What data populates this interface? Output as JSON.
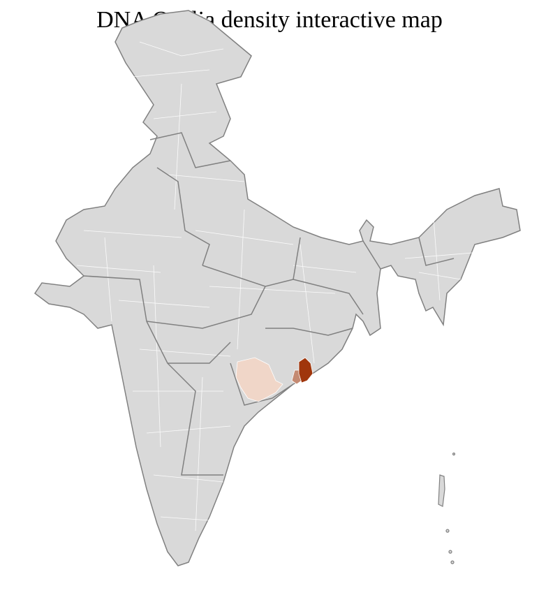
{
  "title": "DNA O Alia density interactive map",
  "colors": {
    "land": "#d9d9d9",
    "district_border": "#ffffff",
    "state_border": "#808080",
    "density_low": "#f0d6c8",
    "density_mid": "#c48a72",
    "density_high": "#a0360c"
  },
  "highlighted_regions": [
    {
      "level": "low"
    },
    {
      "level": "mid"
    },
    {
      "level": "high"
    }
  ]
}
